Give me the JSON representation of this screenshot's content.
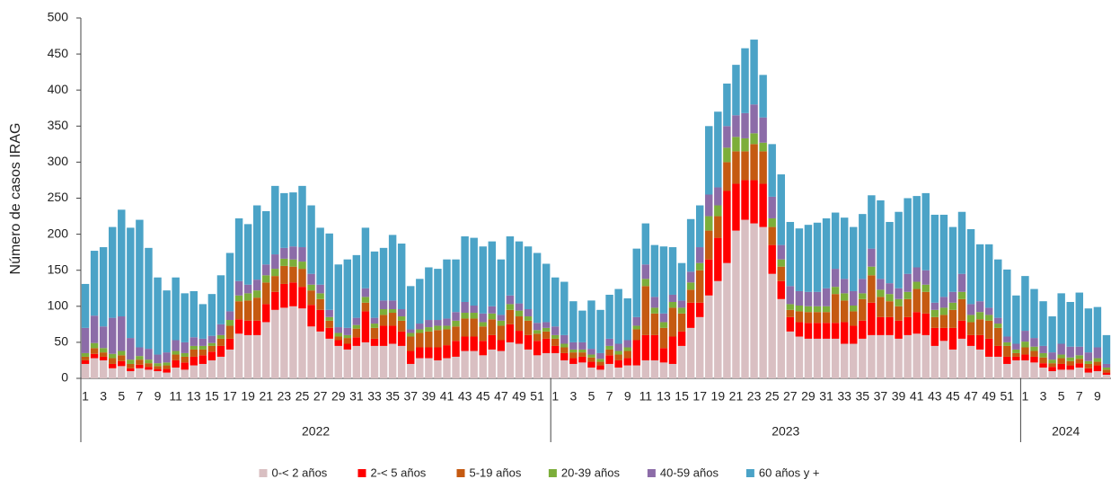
{
  "chart_data": {
    "type": "stacked_bar",
    "y_label": "Número de casos IRAG",
    "ylim": [
      0,
      500
    ],
    "yticks": [
      0,
      50,
      100,
      150,
      200,
      250,
      300,
      350,
      400,
      450,
      500
    ],
    "categories": [
      "1",
      null,
      "3",
      null,
      "5",
      null,
      "7",
      null,
      "9",
      null,
      "11",
      null,
      "13",
      null,
      "15",
      null,
      "17",
      null,
      "19",
      null,
      "21",
      null,
      "23",
      null,
      "25",
      null,
      "27",
      null,
      "29",
      null,
      "31",
      null,
      "33",
      null,
      "35",
      null,
      "37",
      null,
      "39",
      null,
      "41",
      null,
      "43",
      null,
      "45",
      null,
      "47",
      null,
      "49",
      null,
      "51",
      null,
      "1",
      null,
      "3",
      null,
      "5",
      null,
      "7",
      null,
      "9",
      null,
      "11",
      null,
      "13",
      null,
      "15",
      null,
      "17",
      null,
      "19",
      null,
      "21",
      null,
      "23",
      null,
      "25",
      null,
      "27",
      null,
      "29",
      null,
      "31",
      null,
      "33",
      null,
      "35",
      null,
      "37",
      null,
      "39",
      null,
      "41",
      null,
      "43",
      null,
      "45",
      null,
      "47",
      null,
      "49",
      null,
      "51",
      null,
      "1",
      null,
      "3",
      null,
      "5",
      null,
      "7",
      null,
      "9",
      null
    ],
    "groups": [
      {
        "name": "2022",
        "size": 52
      },
      {
        "name": "2023",
        "size": 52
      },
      {
        "name": "2024",
        "size": 10
      }
    ],
    "series": [
      {
        "name": "0-< 2 años",
        "color": "#d9bfc2",
        "values": [
          20,
          28,
          25,
          14,
          17,
          10,
          14,
          12,
          10,
          8,
          15,
          12,
          18,
          20,
          25,
          30,
          40,
          62,
          60,
          60,
          78,
          95,
          98,
          100,
          97,
          72,
          65,
          55,
          45,
          40,
          45,
          50,
          45,
          45,
          48,
          45,
          20,
          28,
          28,
          25,
          28,
          30,
          38,
          38,
          32,
          40,
          38,
          50,
          48,
          40,
          32,
          35,
          35,
          25,
          20,
          22,
          15,
          12,
          20,
          15,
          18,
          18,
          25,
          25,
          22,
          20,
          45,
          70,
          85,
          115,
          135,
          160,
          205,
          220,
          215,
          210,
          145,
          110,
          65,
          58,
          55,
          55,
          55,
          55,
          48,
          48,
          55,
          60,
          60,
          60,
          55,
          60,
          62,
          60,
          45,
          52,
          40,
          55,
          45,
          40,
          30,
          30,
          20,
          25,
          25,
          22,
          15,
          10,
          12,
          12,
          15,
          8,
          10,
          5
        ]
      },
      {
        "name": "2-< 5 años",
        "color": "#ff0000",
        "values": [
          5,
          6,
          5,
          6,
          7,
          4,
          5,
          4,
          3,
          5,
          10,
          10,
          12,
          12,
          12,
          15,
          15,
          20,
          20,
          20,
          25,
          25,
          33,
          33,
          30,
          30,
          30,
          15,
          8,
          8,
          12,
          43,
          10,
          28,
          25,
          20,
          18,
          15,
          15,
          18,
          18,
          22,
          20,
          20,
          20,
          20,
          15,
          25,
          18,
          20,
          20,
          20,
          10,
          10,
          8,
          8,
          8,
          6,
          12,
          10,
          10,
          35,
          35,
          35,
          20,
          38,
          20,
          35,
          20,
          50,
          60,
          100,
          65,
          55,
          60,
          60,
          40,
          25,
          20,
          20,
          22,
          22,
          22,
          22,
          30,
          25,
          25,
          45,
          25,
          25,
          25,
          25,
          30,
          30,
          25,
          18,
          30,
          25,
          15,
          20,
          25,
          15,
          10,
          5,
          8,
          8,
          6,
          6,
          8,
          6,
          6,
          6,
          8,
          3
        ]
      },
      {
        "name": "5-19 años",
        "color": "#c55a11",
        "values": [
          5,
          8,
          6,
          8,
          8,
          6,
          7,
          5,
          4,
          5,
          8,
          8,
          10,
          8,
          8,
          10,
          18,
          25,
          28,
          32,
          30,
          22,
          25,
          22,
          25,
          20,
          15,
          10,
          5,
          8,
          12,
          12,
          15,
          15,
          18,
          15,
          20,
          20,
          22,
          24,
          22,
          20,
          25,
          25,
          20,
          22,
          20,
          20,
          20,
          20,
          10,
          10,
          10,
          8,
          8,
          6,
          6,
          5,
          8,
          8,
          10,
          15,
          68,
          30,
          28,
          40,
          25,
          18,
          45,
          40,
          30,
          40,
          45,
          40,
          50,
          45,
          25,
          20,
          10,
          15,
          15,
          15,
          15,
          40,
          30,
          20,
          30,
          38,
          28,
          22,
          20,
          25,
          32,
          30,
          15,
          18,
          25,
          30,
          18,
          22,
          25,
          25,
          15,
          5,
          10,
          8,
          8,
          5,
          8,
          6,
          6,
          6,
          5,
          4
        ]
      },
      {
        "name": "20-39 años",
        "color": "#7cae3a",
        "values": [
          5,
          7,
          6,
          6,
          6,
          6,
          5,
          5,
          4,
          4,
          5,
          5,
          5,
          5,
          4,
          5,
          8,
          8,
          10,
          10,
          10,
          10,
          10,
          10,
          10,
          8,
          8,
          5,
          5,
          4,
          5,
          8,
          6,
          8,
          5,
          6,
          5,
          5,
          6,
          6,
          5,
          8,
          8,
          8,
          6,
          8,
          7,
          8,
          8,
          6,
          5,
          5,
          5,
          5,
          4,
          4,
          4,
          4,
          5,
          5,
          5,
          5,
          10,
          8,
          8,
          8,
          8,
          10,
          10,
          20,
          15,
          20,
          20,
          18,
          15,
          12,
          12,
          10,
          8,
          8,
          8,
          8,
          8,
          10,
          10,
          8,
          8,
          12,
          10,
          10,
          10,
          10,
          10,
          10,
          10,
          10,
          10,
          10,
          10,
          10,
          8,
          6,
          5,
          5,
          8,
          6,
          6,
          5,
          5,
          5,
          5,
          4,
          5,
          3
        ]
      },
      {
        "name": "40-59 años",
        "color": "#8c6ca8",
        "values": [
          35,
          38,
          30,
          50,
          48,
          30,
          12,
          15,
          12,
          14,
          15,
          15,
          12,
          10,
          10,
          15,
          12,
          20,
          12,
          15,
          15,
          20,
          15,
          18,
          20,
          15,
          12,
          10,
          8,
          10,
          10,
          12,
          8,
          12,
          12,
          10,
          5,
          8,
          10,
          8,
          10,
          12,
          15,
          10,
          12,
          10,
          8,
          12,
          10,
          10,
          10,
          8,
          12,
          12,
          10,
          10,
          8,
          8,
          10,
          10,
          10,
          12,
          20,
          15,
          12,
          10,
          10,
          15,
          22,
          30,
          25,
          30,
          30,
          35,
          40,
          35,
          30,
          20,
          25,
          20,
          20,
          20,
          25,
          25,
          20,
          20,
          20,
          25,
          15,
          15,
          15,
          25,
          20,
          20,
          10,
          15,
          15,
          25,
          15,
          15,
          10,
          8,
          8,
          8,
          15,
          12,
          10,
          10,
          15,
          15,
          12,
          12,
          15,
          5
        ]
      },
      {
        "name": "60 años y +",
        "color": "#4ba3c7",
        "values": [
          61,
          90,
          110,
          126,
          148,
          153,
          177,
          140,
          107,
          86,
          87,
          68,
          64,
          48,
          58,
          68,
          81,
          87,
          84,
          103,
          74,
          95,
          76,
          75,
          85,
          95,
          79,
          106,
          87,
          95,
          87,
          84,
          92,
          73,
          91,
          91,
          60,
          62,
          73,
          71,
          82,
          73,
          91,
          94,
          93,
          90,
          77,
          82,
          86,
          87,
          97,
          81,
          68,
          74,
          57,
          44,
          67,
          60,
          61,
          76,
          58,
          95,
          57,
          72,
          93,
          66,
          52,
          73,
          58,
          95,
          105,
          59,
          70,
          90,
          90,
          59,
          73,
          98,
          89,
          87,
          93,
          96,
          97,
          78,
          85,
          89,
          90,
          74,
          109,
          85,
          106,
          105,
          99,
          107,
          122,
          114,
          90,
          86,
          104,
          79,
          88,
          81,
          93,
          67,
          76,
          68,
          62,
          50,
          70,
          62,
          75,
          61,
          56,
          40
        ]
      }
    ]
  }
}
